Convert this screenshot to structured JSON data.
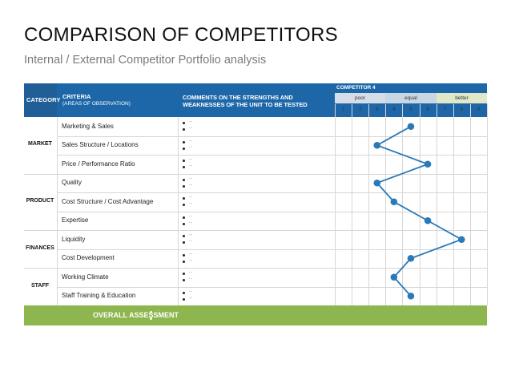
{
  "title": "COMPARISON OF COMPETITORS",
  "subtitle": "Internal / External Competitor Portfolio analysis",
  "header": {
    "category": "CATEGORY",
    "criteria_title": "CRITERIA",
    "criteria_sub": "(AREAS OF OBSERVATION)",
    "comments_line1": "COMMENTS ON THE STRENGTHS AND",
    "comments_line2": "WEAKNESSES OF THE UNIT TO BE TESTED",
    "competitor": "COMPETITOR 4",
    "scale_poor": "poor",
    "scale_equal": "equal",
    "scale_better": "better",
    "scale_numbers": [
      "1",
      "2",
      "3",
      "4",
      "5",
      "6",
      "7",
      "8",
      "9"
    ]
  },
  "colors": {
    "header_blue": "#1d67a8",
    "scale_poor": "#d4dde8",
    "scale_equal": "#c9d6e3",
    "scale_better": "#dfe9c8",
    "overall_green": "#8db64f",
    "marker": "#2a7ab8"
  },
  "bullet_text": "...",
  "categories": [
    {
      "label": "MARKET"
    },
    {
      "label": "PRODUCT"
    },
    {
      "label": "FINANCES"
    },
    {
      "label": "STAFF"
    }
  ],
  "rows": [
    {
      "criterion": "Marketing & Sales"
    },
    {
      "criterion": "Sales Structure / Locations"
    },
    {
      "criterion": "Price / Performance Ratio"
    },
    {
      "criterion": "Quality"
    },
    {
      "criterion": "Cost Structure / Cost Advantage"
    },
    {
      "criterion": "Expertise"
    },
    {
      "criterion": "Liquidity"
    },
    {
      "criterion": "Cost Development"
    },
    {
      "criterion": "Working Climate"
    },
    {
      "criterion": "Staff Training & Education"
    }
  ],
  "overall": {
    "label": "OVERALL ASSESSMENT"
  },
  "chart_data": {
    "type": "line",
    "x_scale": [
      1,
      9
    ],
    "categories": [
      "Marketing & Sales",
      "Sales Structure / Locations",
      "Price / Performance Ratio",
      "Quality",
      "Cost Structure / Cost Advantage",
      "Expertise",
      "Liquidity",
      "Cost Development",
      "Working Climate",
      "Staff Training & Education"
    ],
    "values": [
      5,
      3,
      6,
      3,
      4,
      6,
      8,
      5,
      4,
      5
    ]
  }
}
